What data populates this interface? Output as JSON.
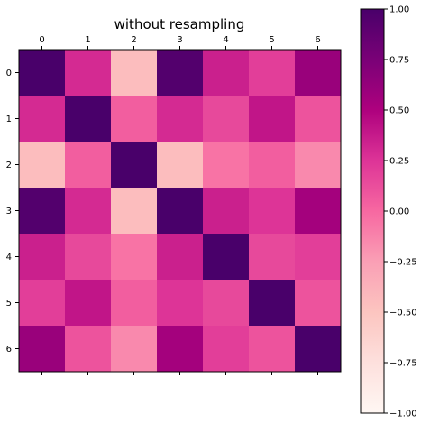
{
  "chart_data": {
    "type": "heatmap",
    "title": "without resampling",
    "x_ticks": [
      "0",
      "1",
      "2",
      "3",
      "4",
      "5",
      "6"
    ],
    "y_ticks": [
      "0",
      "1",
      "2",
      "3",
      "4",
      "5",
      "6"
    ],
    "x_tick_position": "top",
    "colormap": "RdPu",
    "vmin": -1.0,
    "vmax": 1.0,
    "colorbar_ticks": [
      "1.00",
      "0.75",
      "0.50",
      "0.25",
      "0.00",
      "−0.25",
      "−0.50",
      "−0.75",
      "−1.00"
    ],
    "colorbar_values": [
      1.0,
      0.75,
      0.5,
      0.25,
      0.0,
      -0.25,
      -0.5,
      -0.75,
      -1.0
    ],
    "matrix": [
      [
        1.0,
        0.3,
        -0.45,
        0.95,
        0.35,
        0.2,
        0.6
      ],
      [
        0.3,
        1.0,
        0.05,
        0.3,
        0.15,
        0.4,
        0.1
      ],
      [
        -0.45,
        0.05,
        1.0,
        -0.45,
        -0.05,
        0.05,
        -0.15
      ],
      [
        0.95,
        0.3,
        -0.45,
        1.0,
        0.35,
        0.25,
        0.55
      ],
      [
        0.35,
        0.15,
        -0.05,
        0.35,
        1.0,
        0.15,
        0.2
      ],
      [
        0.2,
        0.4,
        0.05,
        0.25,
        0.15,
        1.0,
        0.1
      ],
      [
        0.6,
        0.1,
        -0.15,
        0.55,
        0.2,
        0.1,
        1.0
      ]
    ],
    "grid": false,
    "legend": "none"
  }
}
